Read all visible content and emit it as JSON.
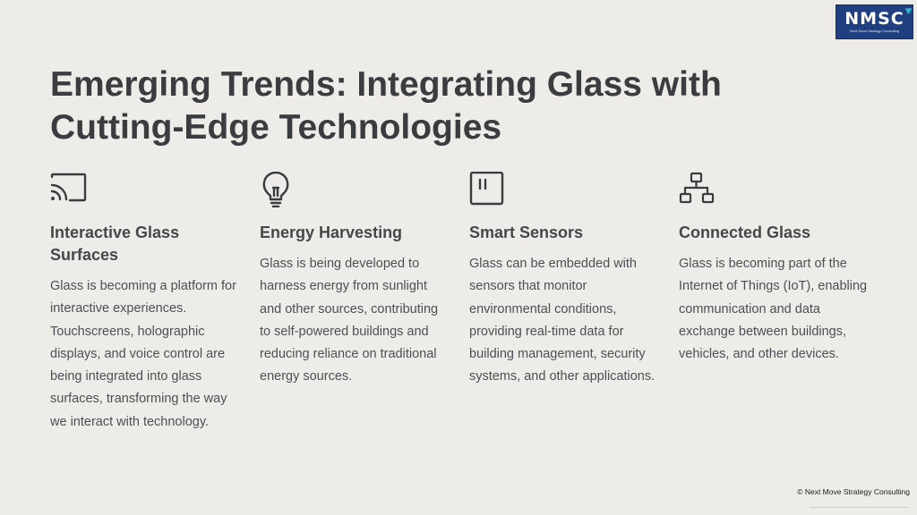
{
  "logo": {
    "main": "NMSC",
    "tagline": "Next Move Strategy Consulting"
  },
  "title": "Emerging Trends: Integrating Glass with Cutting-Edge Technologies",
  "columns": [
    {
      "icon": "cast-icon",
      "heading": "Interactive Glass Surfaces",
      "body": "Glass is becoming a platform for interactive experiences. Touchscreens, holographic displays, and voice control are being integrated into glass surfaces, transforming the way we interact with technology."
    },
    {
      "icon": "lightbulb-icon",
      "heading": "Energy Harvesting",
      "body": "Glass is being developed to harness energy from sunlight and other sources, contributing to self-powered buildings and reducing reliance on traditional energy sources."
    },
    {
      "icon": "sensor-icon",
      "heading": "Smart Sensors",
      "body": "Glass can be embedded with sensors that monitor environmental conditions, providing real-time data for building management, security systems, and other applications."
    },
    {
      "icon": "network-icon",
      "heading": "Connected Glass",
      "body": "Glass is becoming part of the Internet of Things (IoT), enabling communication and data exchange between buildings, vehicles, and other devices."
    }
  ],
  "footer": "© Next Move Strategy Consulting",
  "colors": {
    "background": "#eeece8",
    "text": "#3a3c40",
    "logo_bg": "#1f3f80"
  }
}
